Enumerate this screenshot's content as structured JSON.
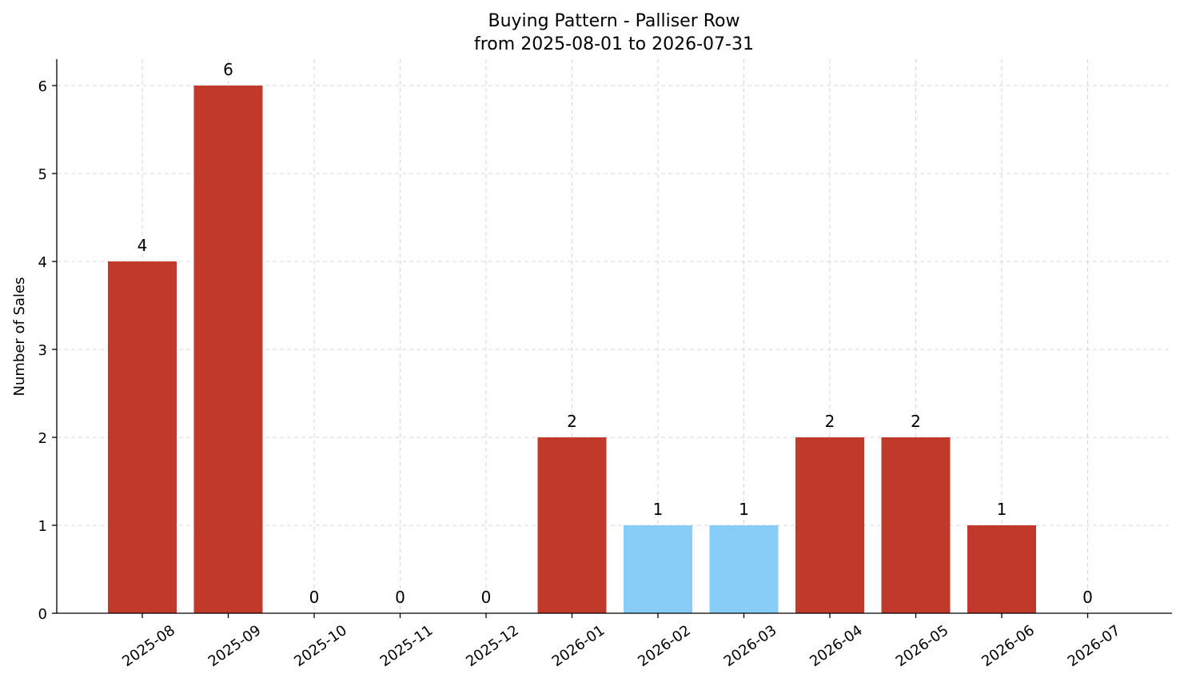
{
  "chart_data": {
    "type": "bar",
    "title": "Buying Pattern - Palliser Row",
    "subtitle": "from 2025-08-01 to 2026-07-31",
    "xlabel": "",
    "ylabel": "Number of Sales",
    "categories": [
      "2025-08",
      "2025-09",
      "2025-10",
      "2025-11",
      "2025-12",
      "2026-01",
      "2026-02",
      "2026-03",
      "2026-04",
      "2026-05",
      "2026-06",
      "2026-07"
    ],
    "values": [
      4,
      6,
      0,
      0,
      0,
      2,
      1,
      1,
      2,
      2,
      1,
      0
    ],
    "bar_colors": [
      "#c0392b",
      "#c0392b",
      "#c0392b",
      "#c0392b",
      "#c0392b",
      "#c0392b",
      "#87cdf7",
      "#87cdf7",
      "#c0392b",
      "#c0392b",
      "#c0392b",
      "#c0392b"
    ],
    "ylim": [
      0,
      6.3
    ],
    "yticks": [
      0,
      1,
      2,
      3,
      4,
      5,
      6
    ],
    "grid": true,
    "data_labels": true
  }
}
